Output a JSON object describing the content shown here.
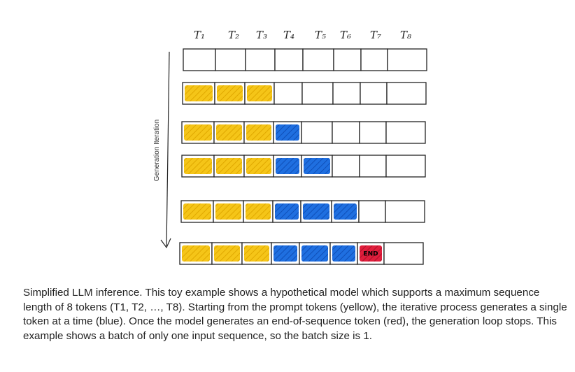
{
  "diagram": {
    "token_labels": [
      "T₁",
      "T₂",
      "T₃",
      "T₄",
      "T₅",
      "T₆",
      "T₇",
      "T₈"
    ],
    "axis_label": "Generation Iteration",
    "end_label": "END",
    "colors": {
      "prompt": "#f5c518",
      "generated": "#1f6fe0",
      "end": "#e01e3c",
      "empty": "#ffffff",
      "stroke": "#222222"
    },
    "rows": [
      [
        "empty",
        "empty",
        "empty",
        "empty",
        "empty",
        "empty",
        "empty",
        "empty"
      ],
      [
        "prompt",
        "prompt",
        "prompt",
        "empty",
        "empty",
        "empty",
        "empty",
        "empty"
      ],
      [
        "prompt",
        "prompt",
        "prompt",
        "generated",
        "empty",
        "empty",
        "empty",
        "empty"
      ],
      [
        "prompt",
        "prompt",
        "prompt",
        "generated",
        "generated",
        "empty",
        "empty",
        "empty"
      ],
      [
        "prompt",
        "prompt",
        "prompt",
        "generated",
        "generated",
        "generated",
        "empty",
        "empty"
      ],
      [
        "prompt",
        "prompt",
        "prompt",
        "generated",
        "generated",
        "generated",
        "end",
        "empty"
      ]
    ]
  },
  "caption": "Simplified LLM inference. This toy example shows a hypothetical model which supports a maximum sequence length of 8 tokens (T1, T2, …, T8). Starting from the prompt tokens (yellow), the iterative process generates a single token at a time (blue). Once the model generates an end-of-sequence token (red), the generation loop stops. This example shows a batch of only one input sequence, so the batch size is 1."
}
